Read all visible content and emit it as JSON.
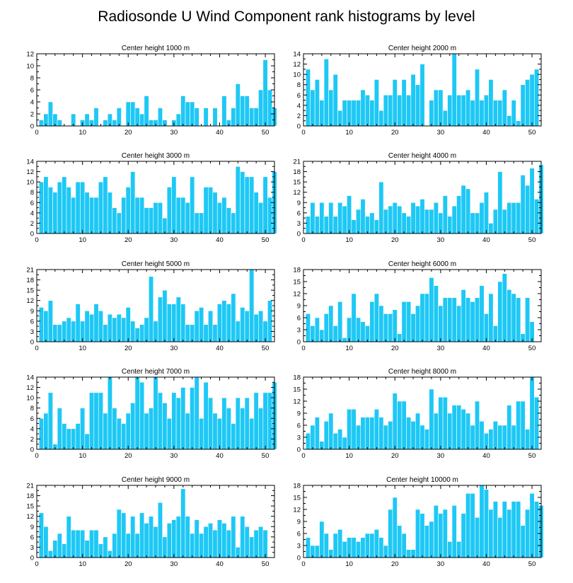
{
  "title": "Radiosonde U Wind Component rank histograms by level",
  "colors": {
    "bar": "#1EC8F5",
    "frame": "#000000"
  },
  "chart_data": [
    {
      "type": "bar",
      "title": "Center height 1000 m",
      "xlim": [
        0,
        52
      ],
      "ylim": [
        0,
        12
      ],
      "xticks": [
        0,
        10,
        20,
        30,
        40,
        50
      ],
      "yticks": [
        0,
        2,
        4,
        6,
        8,
        10,
        12
      ],
      "values": [
        1,
        2,
        4,
        2,
        1,
        0,
        0,
        2,
        0,
        1,
        2,
        1,
        3,
        0,
        1,
        2,
        1,
        3,
        0,
        4,
        4,
        3,
        2,
        5,
        1,
        1,
        3,
        1,
        0,
        1,
        2,
        5,
        4,
        4,
        3,
        0,
        3,
        0,
        3,
        0,
        5,
        1,
        3,
        7,
        5,
        5,
        3,
        3,
        6,
        11,
        6,
        3
      ]
    },
    {
      "type": "bar",
      "title": "Center height 2000 m",
      "xlim": [
        0,
        52
      ],
      "ylim": [
        0,
        14
      ],
      "xticks": [
        0,
        10,
        20,
        30,
        40,
        50
      ],
      "yticks": [
        0,
        2,
        4,
        6,
        8,
        10,
        12,
        14
      ],
      "values": [
        11,
        7,
        9,
        5,
        13,
        7,
        10,
        3,
        5,
        5,
        5,
        5,
        7,
        6,
        5,
        9,
        3,
        6,
        6,
        9,
        6,
        9,
        6,
        10,
        8,
        12,
        0,
        5,
        7,
        7,
        3,
        6,
        14,
        6,
        6,
        7,
        5,
        11,
        5,
        6,
        9,
        5,
        5,
        7,
        2,
        5,
        1,
        8,
        9,
        10,
        11
      ]
    },
    {
      "type": "bar",
      "title": "Center height 3000 m",
      "xlim": [
        0,
        52
      ],
      "ylim": [
        0,
        14
      ],
      "xticks": [
        0,
        10,
        20,
        30,
        40,
        50
      ],
      "yticks": [
        0,
        2,
        4,
        6,
        8,
        10,
        12,
        14
      ],
      "values": [
        10,
        11,
        9,
        8,
        10,
        11,
        9,
        7,
        10,
        10,
        8,
        7,
        7,
        10,
        11,
        8,
        5,
        4,
        7,
        9,
        12,
        7,
        7,
        5,
        5,
        6,
        6,
        3,
        9,
        11,
        7,
        7,
        6,
        11,
        4,
        4,
        9,
        9,
        8,
        6,
        7,
        5,
        4,
        13,
        12,
        11,
        11,
        8,
        6,
        11,
        7,
        12
      ]
    },
    {
      "type": "bar",
      "title": "Center height 4000 m",
      "xlim": [
        0,
        52
      ],
      "ylim": [
        0,
        21
      ],
      "xticks": [
        0,
        10,
        20,
        30,
        40,
        50
      ],
      "yticks": [
        0,
        3,
        6,
        9,
        12,
        15,
        18,
        21
      ],
      "values": [
        5,
        9,
        5,
        9,
        5,
        9,
        5,
        9,
        8,
        11,
        4,
        7,
        10,
        5,
        6,
        4,
        15,
        7,
        8,
        9,
        8,
        6,
        5,
        9,
        8,
        10,
        7,
        7,
        9,
        6,
        11,
        5,
        8,
        11,
        14,
        13,
        6,
        6,
        9,
        12,
        3,
        7,
        18,
        7,
        9,
        9,
        9,
        17,
        14,
        19,
        10,
        20
      ]
    },
    {
      "type": "bar",
      "title": "Center height 5000 m",
      "xlim": [
        0,
        52
      ],
      "ylim": [
        0,
        21
      ],
      "xticks": [
        0,
        10,
        20,
        30,
        40,
        50
      ],
      "yticks": [
        0,
        3,
        6,
        9,
        12,
        15,
        18,
        21
      ],
      "values": [
        10,
        9,
        12,
        5,
        5,
        6,
        7,
        6,
        11,
        6,
        9,
        8,
        11,
        9,
        5,
        8,
        7,
        8,
        7,
        10,
        6,
        4,
        5,
        7,
        19,
        6,
        13,
        15,
        11,
        11,
        13,
        11,
        5,
        5,
        9,
        10,
        5,
        9,
        5,
        11,
        12,
        11,
        14,
        6,
        10,
        9,
        21,
        8,
        9,
        6,
        12
      ]
    },
    {
      "type": "bar",
      "title": "Center height 6000 m",
      "xlim": [
        0,
        52
      ],
      "ylim": [
        0,
        18
      ],
      "xticks": [
        0,
        10,
        20,
        30,
        40,
        50
      ],
      "yticks": [
        0,
        3,
        6,
        9,
        12,
        15,
        18
      ],
      "values": [
        7,
        4,
        6,
        3,
        7,
        9,
        4,
        10,
        1,
        6,
        12,
        6,
        5,
        4,
        10,
        12,
        9,
        7,
        7,
        8,
        2,
        10,
        10,
        7,
        9,
        12,
        12,
        16,
        14,
        9,
        11,
        11,
        11,
        9,
        13,
        11,
        10,
        11,
        14,
        7,
        12,
        4,
        15,
        17,
        13,
        12,
        11,
        2,
        11,
        5
      ]
    },
    {
      "type": "bar",
      "title": "Center height 7000 m",
      "xlim": [
        0,
        52
      ],
      "ylim": [
        0,
        14
      ],
      "xticks": [
        0,
        10,
        20,
        30,
        40,
        50
      ],
      "yticks": [
        0,
        2,
        4,
        6,
        8,
        10,
        12,
        14
      ],
      "values": [
        6,
        7,
        11,
        1,
        8,
        5,
        4,
        4,
        5,
        8,
        3,
        11,
        11,
        11,
        7,
        14,
        8,
        6,
        5,
        7,
        9,
        14,
        13,
        7,
        8,
        14,
        11,
        9,
        6,
        11,
        10,
        12,
        7,
        12,
        14,
        6,
        13,
        10,
        7,
        6,
        10,
        8,
        5,
        10,
        8,
        10,
        6,
        11,
        8,
        11,
        11,
        13
      ]
    },
    {
      "type": "bar",
      "title": "Center height 8000 m",
      "xlim": [
        0,
        52
      ],
      "ylim": [
        0,
        18
      ],
      "xticks": [
        0,
        10,
        20,
        30,
        40,
        50
      ],
      "yticks": [
        0,
        3,
        6,
        9,
        12,
        15,
        18
      ],
      "values": [
        4,
        6,
        8,
        2,
        7,
        9,
        4,
        5,
        3,
        10,
        10,
        6,
        8,
        8,
        8,
        10,
        8,
        6,
        7,
        14,
        12,
        12,
        8,
        7,
        9,
        6,
        5,
        15,
        9,
        13,
        13,
        9,
        11,
        11,
        10,
        9,
        6,
        12,
        7,
        4,
        5,
        7,
        6,
        6,
        11,
        6,
        12,
        12,
        5,
        18,
        13
      ]
    },
    {
      "type": "bar",
      "title": "Center height 9000 m",
      "xlim": [
        0,
        52
      ],
      "ylim": [
        0,
        21
      ],
      "xticks": [
        0,
        10,
        20,
        30,
        40,
        50
      ],
      "yticks": [
        0,
        3,
        6,
        9,
        12,
        15,
        18,
        21
      ],
      "values": [
        13,
        9,
        2,
        5,
        7,
        4,
        12,
        8,
        8,
        8,
        5,
        8,
        8,
        4,
        6,
        2,
        7,
        14,
        13,
        7,
        12,
        7,
        13,
        10,
        12,
        9,
        16,
        6,
        10,
        11,
        12,
        20,
        12,
        7,
        11,
        7,
        9,
        10,
        8,
        11,
        10,
        8,
        12,
        3,
        12,
        9,
        6,
        8,
        9,
        8
      ]
    },
    {
      "type": "bar",
      "title": "Center height 10000 m",
      "xlim": [
        0,
        52
      ],
      "ylim": [
        0,
        18
      ],
      "xticks": [
        0,
        10,
        20,
        30,
        40,
        50
      ],
      "yticks": [
        0,
        3,
        6,
        9,
        12,
        15,
        18
      ],
      "values": [
        5,
        3,
        3,
        9,
        6,
        2,
        6,
        7,
        4,
        5,
        5,
        4,
        5,
        6,
        6,
        7,
        5,
        3,
        12,
        15,
        8,
        6,
        2,
        2,
        12,
        11,
        8,
        9,
        13,
        11,
        12,
        4,
        13,
        4,
        11,
        16,
        16,
        10,
        18,
        17,
        12,
        14,
        10,
        14,
        12,
        14,
        14,
        8,
        12,
        16,
        14,
        13
      ]
    }
  ]
}
